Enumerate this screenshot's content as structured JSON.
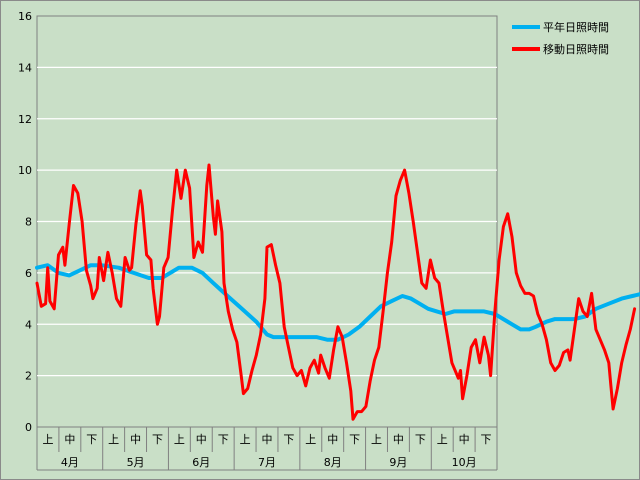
{
  "chart_data": {
    "type": "line",
    "ylim": [
      0,
      16
    ],
    "yticks": [
      0,
      2,
      4,
      6,
      8,
      10,
      12,
      14,
      16
    ],
    "grid": true,
    "legend_position": "top-right",
    "x_subcategories": [
      "上",
      "中",
      "下"
    ],
    "x_groups": [
      "4月",
      "5月",
      "6月",
      "7月",
      "8月",
      "9月",
      "10月"
    ],
    "x_days_per_group": [
      30,
      31,
      30,
      31,
      31,
      30,
      31
    ],
    "series": [
      {
        "name": "平年日照時間",
        "color": "#00b0f0",
        "points": [
          [
            0,
            6.2
          ],
          [
            5,
            6.3
          ],
          [
            10,
            6.0
          ],
          [
            15,
            5.9
          ],
          [
            20,
            6.1
          ],
          [
            25,
            6.3
          ],
          [
            30,
            6.3
          ],
          [
            38,
            6.2
          ],
          [
            45,
            6.0
          ],
          [
            52,
            5.8
          ],
          [
            58,
            5.8
          ],
          [
            62,
            6.0
          ],
          [
            66,
            6.2
          ],
          [
            72,
            6.2
          ],
          [
            77,
            6.0
          ],
          [
            82,
            5.6
          ],
          [
            86,
            5.3
          ],
          [
            90,
            5.0
          ],
          [
            94,
            4.7
          ],
          [
            98,
            4.4
          ],
          [
            102,
            4.1
          ],
          [
            105,
            3.8
          ],
          [
            107,
            3.6
          ],
          [
            110,
            3.5
          ],
          [
            130,
            3.5
          ],
          [
            135,
            3.4
          ],
          [
            140,
            3.4
          ],
          [
            145,
            3.6
          ],
          [
            150,
            3.9
          ],
          [
            155,
            4.3
          ],
          [
            160,
            4.7
          ],
          [
            165,
            4.9
          ],
          [
            170,
            5.1
          ],
          [
            174,
            5.0
          ],
          [
            178,
            4.8
          ],
          [
            182,
            4.6
          ],
          [
            186,
            4.5
          ],
          [
            190,
            4.4
          ],
          [
            194,
            4.5
          ],
          [
            200,
            4.5
          ],
          [
            208,
            4.5
          ],
          [
            213,
            4.4
          ],
          [
            217,
            4.2
          ],
          [
            221,
            4.0
          ],
          [
            225,
            3.8
          ],
          [
            229,
            3.8
          ],
          [
            232,
            3.9
          ],
          [
            237,
            4.1
          ],
          [
            241,
            4.2
          ],
          [
            250,
            4.2
          ],
          [
            255,
            4.3
          ],
          [
            260,
            4.6
          ],
          [
            266,
            4.8
          ],
          [
            272,
            5.0
          ],
          [
            277,
            5.1
          ],
          [
            282,
            5.2
          ],
          [
            291,
            5.2
          ]
        ]
      },
      {
        "name": "移動日照時間",
        "color": "#ff0000",
        "points": [
          [
            0,
            5.6
          ],
          [
            2,
            4.7
          ],
          [
            4,
            4.8
          ],
          [
            5,
            6.2
          ],
          [
            6,
            4.9
          ],
          [
            8,
            4.6
          ],
          [
            10,
            6.7
          ],
          [
            12,
            7.0
          ],
          [
            13,
            6.3
          ],
          [
            15,
            7.9
          ],
          [
            17,
            9.4
          ],
          [
            19,
            9.1
          ],
          [
            21,
            8.0
          ],
          [
            23,
            6.1
          ],
          [
            25,
            5.5
          ],
          [
            26,
            5.0
          ],
          [
            28,
            5.4
          ],
          [
            29,
            6.6
          ],
          [
            31,
            5.7
          ],
          [
            33,
            6.8
          ],
          [
            35,
            6.0
          ],
          [
            37,
            5.0
          ],
          [
            39,
            4.7
          ],
          [
            41,
            6.6
          ],
          [
            43,
            6.1
          ],
          [
            44,
            6.2
          ],
          [
            46,
            7.9
          ],
          [
            48,
            9.2
          ],
          [
            49,
            8.6
          ],
          [
            51,
            6.7
          ],
          [
            53,
            6.5
          ],
          [
            54,
            5.4
          ],
          [
            56,
            4.0
          ],
          [
            57,
            4.3
          ],
          [
            59,
            6.2
          ],
          [
            61,
            6.6
          ],
          [
            63,
            8.4
          ],
          [
            65,
            10.0
          ],
          [
            67,
            8.9
          ],
          [
            69,
            10.0
          ],
          [
            71,
            9.3
          ],
          [
            73,
            6.6
          ],
          [
            75,
            7.2
          ],
          [
            77,
            6.8
          ],
          [
            79,
            9.4
          ],
          [
            80,
            10.2
          ],
          [
            82,
            8.2
          ],
          [
            83,
            7.5
          ],
          [
            84,
            8.8
          ],
          [
            86,
            7.6
          ],
          [
            87,
            5.6
          ],
          [
            89,
            4.5
          ],
          [
            91,
            3.8
          ],
          [
            93,
            3.3
          ],
          [
            95,
            2.0
          ],
          [
            96,
            1.3
          ],
          [
            98,
            1.5
          ],
          [
            100,
            2.2
          ],
          [
            102,
            2.8
          ],
          [
            104,
            3.6
          ],
          [
            106,
            5.0
          ],
          [
            107,
            7.0
          ],
          [
            109,
            7.1
          ],
          [
            111,
            6.3
          ],
          [
            113,
            5.6
          ],
          [
            115,
            3.9
          ],
          [
            117,
            3.1
          ],
          [
            119,
            2.3
          ],
          [
            121,
            2.0
          ],
          [
            123,
            2.2
          ],
          [
            125,
            1.6
          ],
          [
            127,
            2.3
          ],
          [
            129,
            2.6
          ],
          [
            131,
            2.1
          ],
          [
            132,
            2.8
          ],
          [
            134,
            2.3
          ],
          [
            136,
            1.9
          ],
          [
            138,
            3.0
          ],
          [
            140,
            3.9
          ],
          [
            142,
            3.5
          ],
          [
            144,
            2.5
          ],
          [
            146,
            1.4
          ],
          [
            147,
            0.3
          ],
          [
            149,
            0.6
          ],
          [
            151,
            0.6
          ],
          [
            153,
            0.8
          ],
          [
            155,
            1.8
          ],
          [
            157,
            2.6
          ],
          [
            159,
            3.1
          ],
          [
            161,
            4.5
          ],
          [
            163,
            6.0
          ],
          [
            165,
            7.2
          ],
          [
            167,
            9.0
          ],
          [
            169,
            9.6
          ],
          [
            171,
            10.0
          ],
          [
            173,
            9.1
          ],
          [
            175,
            8.0
          ],
          [
            177,
            6.8
          ],
          [
            179,
            5.6
          ],
          [
            181,
            5.4
          ],
          [
            183,
            6.5
          ],
          [
            185,
            5.8
          ],
          [
            187,
            5.6
          ],
          [
            189,
            4.5
          ],
          [
            191,
            3.5
          ],
          [
            193,
            2.5
          ],
          [
            195,
            2.1
          ],
          [
            196,
            1.9
          ],
          [
            197,
            2.2
          ],
          [
            198,
            1.1
          ],
          [
            200,
            2.0
          ],
          [
            202,
            3.1
          ],
          [
            204,
            3.4
          ],
          [
            206,
            2.5
          ],
          [
            208,
            3.5
          ],
          [
            210,
            2.8
          ],
          [
            211,
            2.0
          ],
          [
            213,
            4.5
          ],
          [
            215,
            6.5
          ],
          [
            217,
            7.8
          ],
          [
            219,
            8.3
          ],
          [
            221,
            7.4
          ],
          [
            223,
            6.0
          ],
          [
            225,
            5.5
          ],
          [
            227,
            5.2
          ],
          [
            229,
            5.2
          ],
          [
            231,
            5.1
          ],
          [
            233,
            4.4
          ],
          [
            235,
            4.0
          ],
          [
            237,
            3.4
          ],
          [
            239,
            2.5
          ],
          [
            241,
            2.2
          ],
          [
            243,
            2.4
          ],
          [
            245,
            2.9
          ],
          [
            247,
            3.0
          ],
          [
            248,
            2.6
          ],
          [
            250,
            3.8
          ],
          [
            252,
            5.0
          ],
          [
            254,
            4.5
          ],
          [
            256,
            4.3
          ],
          [
            258,
            5.2
          ],
          [
            260,
            3.8
          ],
          [
            262,
            3.4
          ],
          [
            264,
            3.0
          ],
          [
            266,
            2.5
          ],
          [
            267,
            1.6
          ],
          [
            268,
            0.7
          ],
          [
            270,
            1.5
          ],
          [
            272,
            2.5
          ],
          [
            274,
            3.2
          ],
          [
            276,
            3.8
          ],
          [
            278,
            4.6
          ]
        ]
      }
    ]
  }
}
